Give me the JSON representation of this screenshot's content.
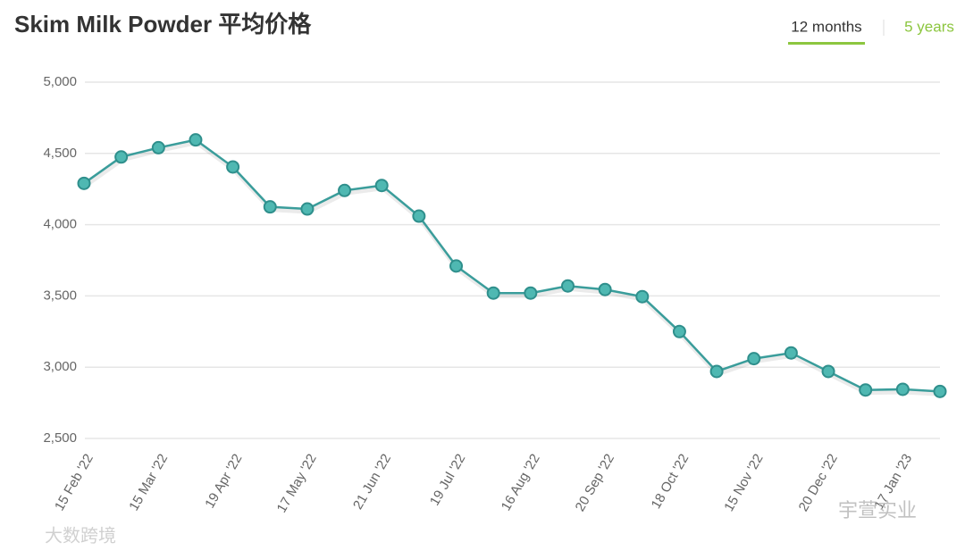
{
  "header": {
    "title": "Skim Milk Powder 平均价格",
    "tabs": [
      "12 months",
      "5 years"
    ]
  },
  "chart_data": {
    "type": "line",
    "categories": [
      "15 Feb '22",
      null,
      "15 Mar '22",
      null,
      "19 Apr '22",
      null,
      "17 May '22",
      null,
      "21 Jun '22",
      null,
      "19 Jul '22",
      null,
      "16 Aug '22",
      null,
      "20 Sep '22",
      null,
      "18 Oct '22",
      null,
      "15 Nov '22",
      null,
      "20 Dec '22",
      null,
      "17 Jan '23",
      null
    ],
    "series": [
      {
        "name": "Skim Milk Powder",
        "color": "#3a9d9b",
        "values": [
          4290,
          4475,
          4540,
          4595,
          4405,
          4125,
          4110,
          4240,
          4275,
          4060,
          3710,
          3520,
          3520,
          3570,
          3545,
          3495,
          3250,
          2970,
          3060,
          3100,
          2970,
          2840,
          2845,
          2830
        ]
      }
    ],
    "ylim": [
      2500,
      5000
    ],
    "yticks": [
      {
        "value": 2500,
        "label": "2,500"
      },
      {
        "value": 3000,
        "label": "3,000"
      },
      {
        "value": 3500,
        "label": "3,500"
      },
      {
        "value": 4000,
        "label": "4,000"
      },
      {
        "value": 4500,
        "label": "4,500"
      },
      {
        "value": 5000,
        "label": "5,000"
      }
    ],
    "grid": true
  },
  "watermarks": [
    "大数跨境",
    "宇萱实业"
  ]
}
